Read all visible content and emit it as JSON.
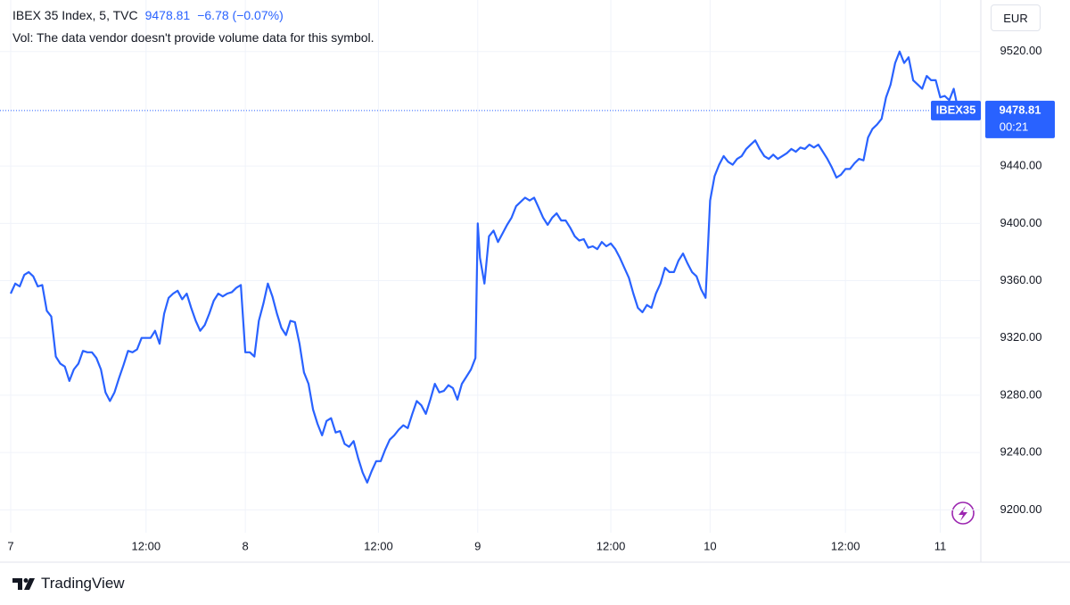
{
  "header": {
    "symbol": "IBEX 35 Index, 5, TVC",
    "change": "−6.78 (−0.07%)",
    "volume_note": "Vol: The data vendor doesn't provide volume data for this symbol."
  },
  "currency": "EUR",
  "brand": "TradingView",
  "chart_data": {
    "type": "line",
    "color": "#2962ff",
    "grid": true,
    "last_price": 9478.81,
    "symbol_badge": "IBEX35",
    "countdown": "00:21",
    "xlim": [
      0,
      430
    ],
    "ylim": [
      9184,
      9556
    ],
    "xticks": [
      {
        "value": 0,
        "label": "7"
      },
      {
        "value": 60,
        "label": "12:00"
      },
      {
        "value": 104,
        "label": "8"
      },
      {
        "value": 163,
        "label": "12:00"
      },
      {
        "value": 207,
        "label": "9"
      },
      {
        "value": 266,
        "label": "12:00"
      },
      {
        "value": 310,
        "label": "10"
      },
      {
        "value": 370,
        "label": "12:00"
      },
      {
        "value": 412,
        "label": "11"
      }
    ],
    "yticks": [
      {
        "value": 9200,
        "label": "9200.00"
      },
      {
        "value": 9240,
        "label": "9240.00"
      },
      {
        "value": 9280,
        "label": "9280.00"
      },
      {
        "value": 9320,
        "label": "9320.00"
      },
      {
        "value": 9360,
        "label": "9360.00"
      },
      {
        "value": 9400,
        "label": "9400.00"
      },
      {
        "value": 9440,
        "label": "9440.00"
      },
      {
        "value": 9520,
        "label": "9520.00"
      }
    ],
    "x": [
      0,
      2,
      4,
      6,
      8,
      10,
      12,
      14,
      16,
      18,
      20,
      22,
      24,
      26,
      28,
      30,
      32,
      34,
      36,
      38,
      40,
      42,
      44,
      46,
      48,
      50,
      52,
      54,
      56,
      58,
      60,
      62,
      64,
      66,
      68,
      70,
      72,
      74,
      76,
      78,
      80,
      82,
      84,
      86,
      88,
      90,
      92,
      94,
      96,
      98,
      100,
      102,
      104,
      106,
      108,
      110,
      112,
      114,
      116,
      118,
      120,
      122,
      124,
      126,
      128,
      130,
      132,
      134,
      136,
      138,
      140,
      142,
      144,
      146,
      148,
      150,
      152,
      154,
      156,
      158,
      160,
      162,
      164,
      166,
      168,
      170,
      172,
      174,
      176,
      178,
      180,
      182,
      184,
      186,
      188,
      190,
      192,
      194,
      196,
      198,
      200,
      202,
      204,
      206,
      207,
      208,
      210,
      212,
      214,
      216,
      218,
      220,
      222,
      224,
      226,
      228,
      230,
      232,
      234,
      236,
      238,
      240,
      242,
      244,
      246,
      248,
      250,
      252,
      254,
      256,
      258,
      260,
      262,
      264,
      266,
      268,
      270,
      272,
      274,
      276,
      278,
      280,
      282,
      284,
      286,
      288,
      290,
      292,
      294,
      296,
      298,
      300,
      302,
      304,
      306,
      308,
      310,
      312,
      314,
      316,
      318,
      320,
      322,
      324,
      326,
      328,
      330,
      332,
      334,
      336,
      338,
      340,
      342,
      344,
      346,
      348,
      350,
      352,
      354,
      356,
      358,
      360,
      362,
      364,
      366,
      368,
      370,
      372,
      374,
      376,
      378,
      380,
      382,
      384,
      386,
      388,
      390,
      392,
      394,
      396,
      398,
      400,
      402,
      404,
      406,
      408,
      410,
      412,
      414,
      416,
      418,
      420
    ],
    "values": [
      9351,
      9358,
      9356,
      9364,
      9366,
      9363,
      9356,
      9357,
      9339,
      9335,
      9307,
      9302,
      9300,
      9290,
      9298,
      9302,
      9311,
      9310,
      9310,
      9306,
      9298,
      9282,
      9276,
      9282,
      9292,
      9301,
      9311,
      9310,
      9312,
      9320,
      9320,
      9320,
      9325,
      9316,
      9337,
      9348,
      9351,
      9353,
      9347,
      9351,
      9341,
      9332,
      9325,
      9329,
      9337,
      9346,
      9351,
      9349,
      9351,
      9352,
      9355,
      9357,
      9310,
      9310,
      9307,
      9332,
      9344,
      9358,
      9349,
      9337,
      9327,
      9322,
      9332,
      9331,
      9316,
      9296,
      9288,
      9270,
      9260,
      9252,
      9262,
      9264,
      9254,
      9255,
      9246,
      9244,
      9248,
      9236,
      9226,
      9219,
      9227,
      9234,
      9234,
      9242,
      9249,
      9252,
      9256,
      9259,
      9257,
      9267,
      9276,
      9273,
      9267,
      9277,
      9288,
      9282,
      9283,
      9287,
      9285,
      9277,
      9288,
      9293,
      9298,
      9306,
      9400,
      9376,
      9358,
      9391,
      9395,
      9387,
      9393,
      9399,
      9404,
      9412,
      9415,
      9418,
      9416,
      9418,
      9411,
      9404,
      9399,
      9404,
      9407,
      9402,
      9402,
      9397,
      9391,
      9388,
      9389,
      9383,
      9384,
      9382,
      9387,
      9384,
      9386,
      9382,
      9376,
      9369,
      9362,
      9351,
      9341,
      9338,
      9343,
      9341,
      9351,
      9358,
      9369,
      9366,
      9366,
      9374,
      9379,
      9372,
      9366,
      9363,
      9354,
      9348,
      9416,
      9433,
      9441,
      9447,
      9443,
      9441,
      9445,
      9447,
      9452,
      9455,
      9458,
      9452,
      9447,
      9445,
      9448,
      9445,
      9447,
      9449,
      9452,
      9450,
      9453,
      9452,
      9455,
      9453,
      9455,
      9450,
      9445,
      9439,
      9432,
      9434,
      9438,
      9438,
      9442,
      9445,
      9444,
      9460,
      9466,
      9469,
      9473,
      9488,
      9497,
      9512,
      9520,
      9512,
      9516,
      9500,
      9497,
      9494,
      9503,
      9500,
      9500,
      9488,
      9489,
      9486,
      9494,
      9479
    ]
  }
}
